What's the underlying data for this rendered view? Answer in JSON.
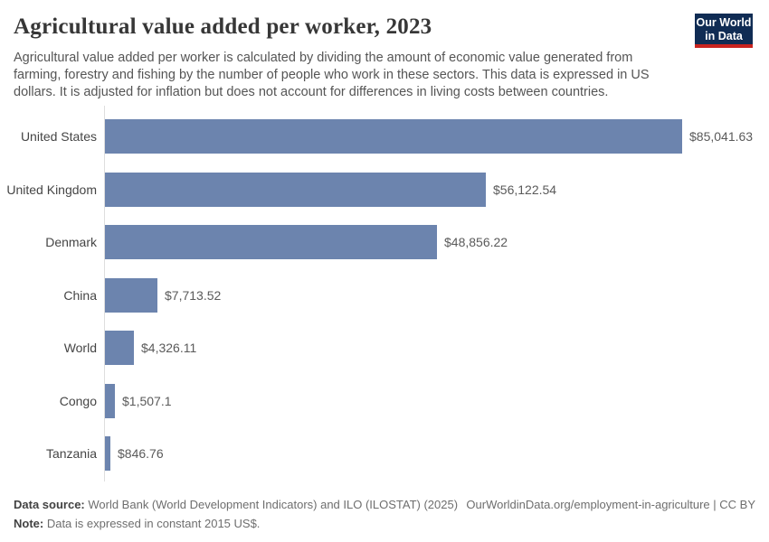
{
  "header": {
    "title": "Agricultural value added per worker, 2023",
    "subtitle": "Agricultural value added per worker is calculated by dividing the amount of economic value generated from\nfarming, forestry and fishing by the number of people who work in these sectors. This data is expressed in US\ndollars. It is adjusted for inflation but does not account for differences in living costs between countries.",
    "logo": {
      "line1": "Our World",
      "line2": "in Data",
      "bg_color": "#102c54",
      "accent_color": "#c9231f"
    }
  },
  "chart_data": {
    "type": "bar",
    "orientation": "horizontal",
    "title": "Agricultural value added per worker, 2023",
    "categories": [
      "United States",
      "United Kingdom",
      "Denmark",
      "China",
      "World",
      "Congo",
      "Tanzania"
    ],
    "values": [
      85041.63,
      56122.54,
      48856.22,
      7713.52,
      4326.11,
      1507.1,
      846.76
    ],
    "value_labels": [
      "$85,041.63",
      "$56,122.54",
      "$48,856.22",
      "$7,713.52",
      "$4,326.11",
      "$1,507.1",
      "$846.76"
    ],
    "xlim": [
      0,
      85041.63
    ],
    "unit": "constant 2015 US$",
    "grid": false,
    "legend": "none",
    "bar_color": "#6c84ae",
    "axis_color": "#dedede"
  },
  "footer": {
    "source_label": "Data source:",
    "source_text": " World Bank (World Development Indicators) and ILO (ILOSTAT) (2025)",
    "link_text": "OurWorldinData.org/employment-in-agriculture | CC BY",
    "note_label": "Note:",
    "note_text": " Data is expressed in constant 2015 US$."
  }
}
